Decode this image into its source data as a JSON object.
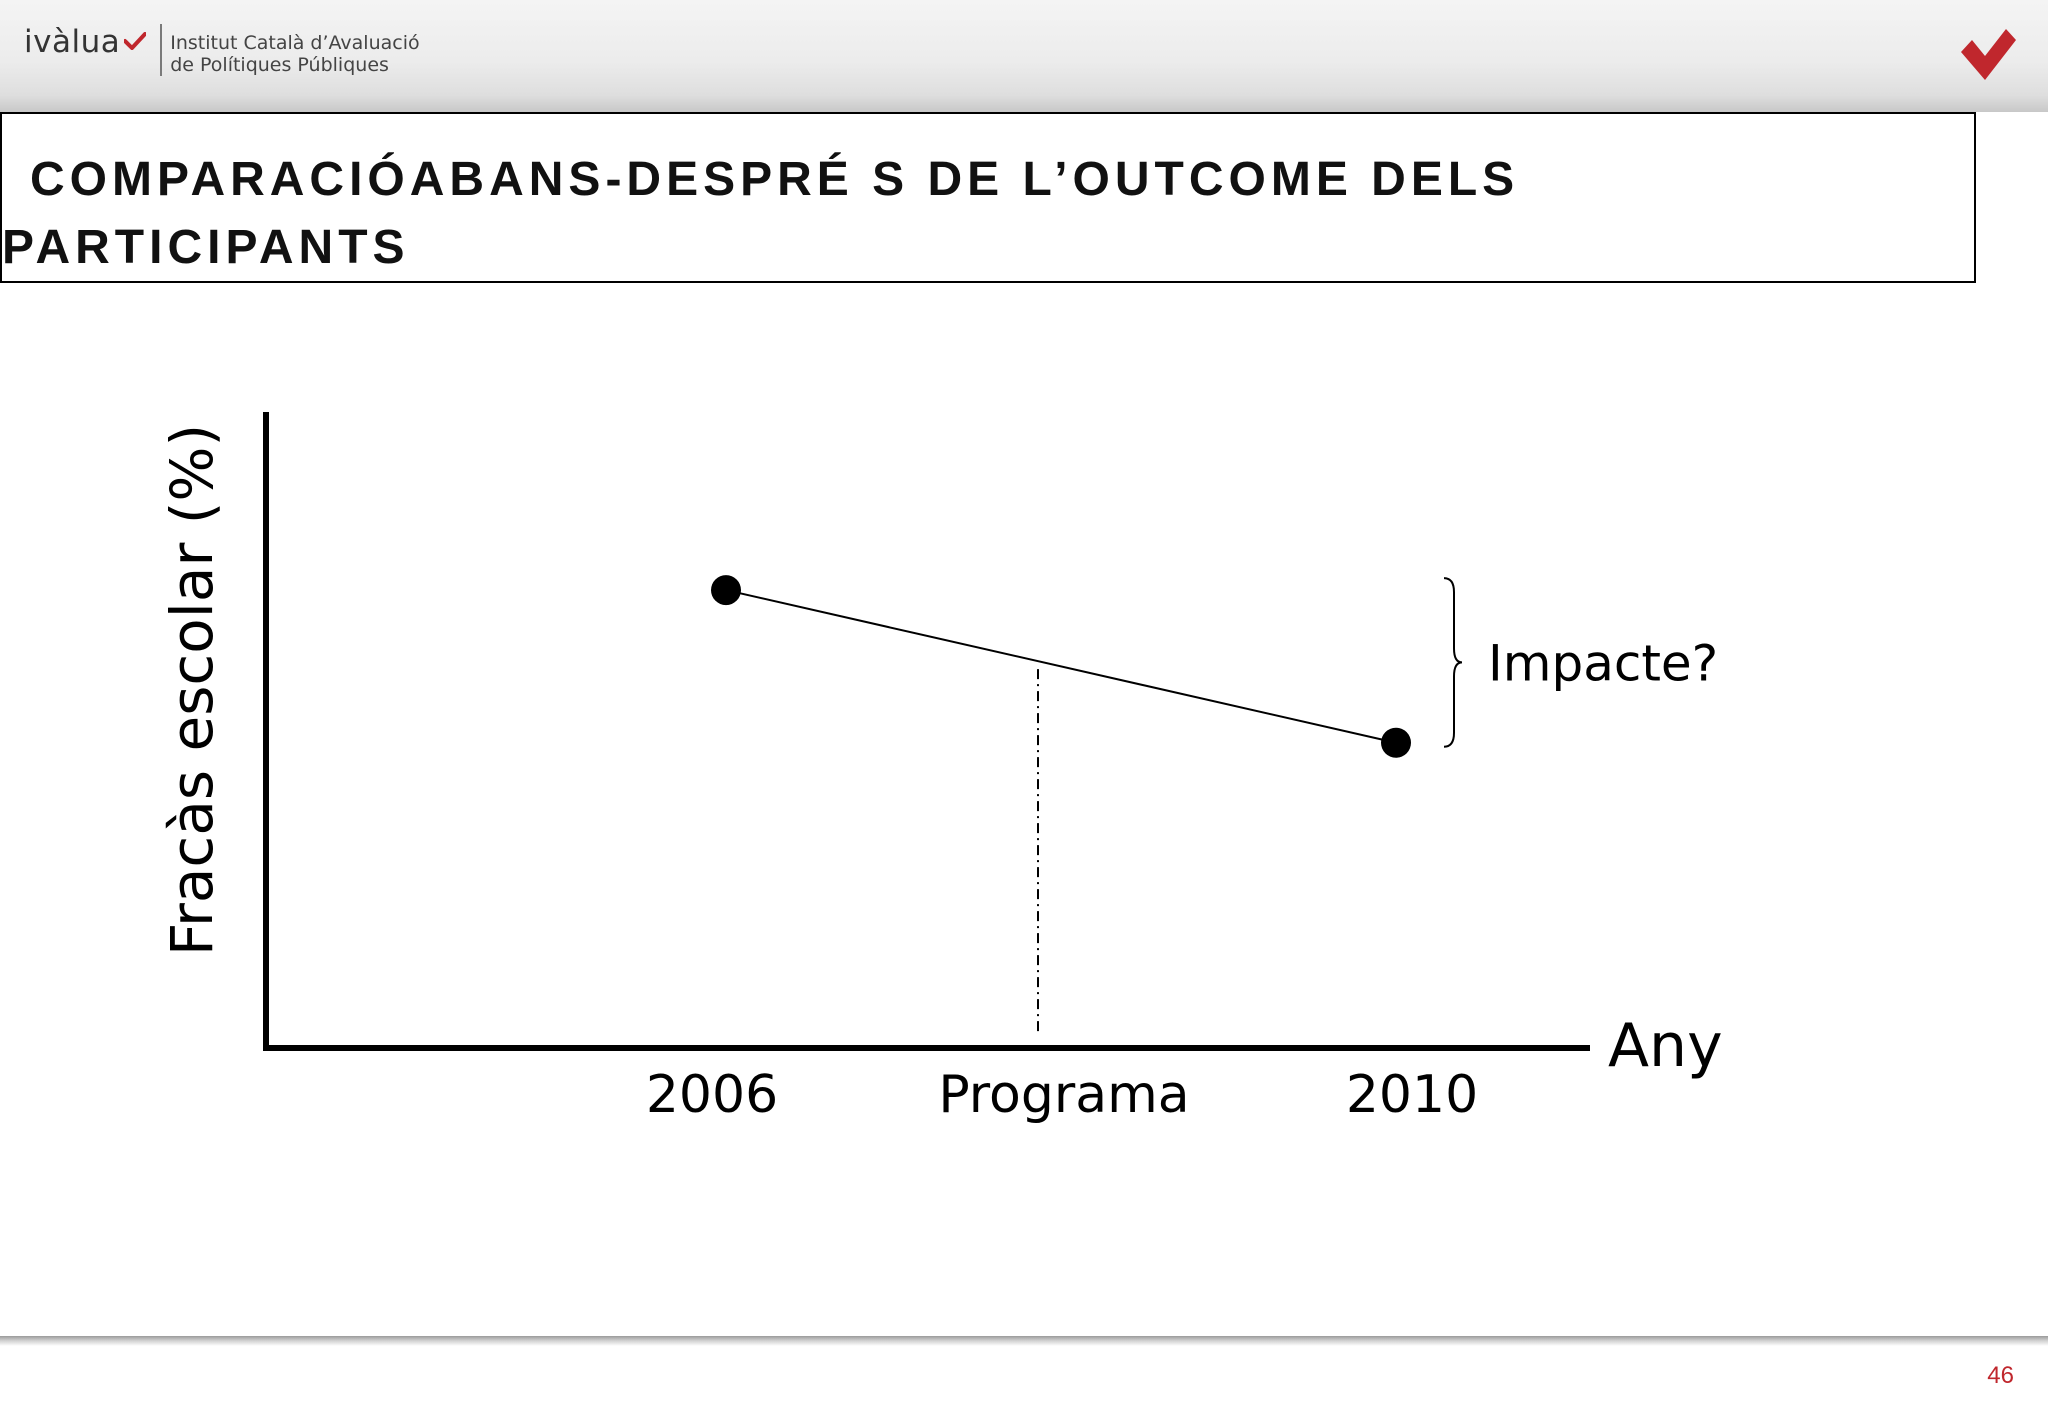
{
  "header": {
    "logo_word": "ivàlua",
    "institute_line1": "Institut Català d’Avaluació",
    "institute_line2": "de Polítiques Públiques"
  },
  "title": {
    "line1": "COMPARACIÓABANS-DESPRÉ S DE L’OUTCOME DELS",
    "line2": "PARTICIPANTS"
  },
  "chart_data": {
    "type": "line",
    "x": [
      "2006",
      "2010"
    ],
    "x_tick_labels": [
      "2006",
      "Programa",
      "2010"
    ],
    "series": [
      {
        "values": [
          72,
          48
        ]
      }
    ],
    "xlabel": "Any",
    "ylabel": "Fracàs escolar (%)",
    "ylim": [
      0,
      100
    ],
    "markers": "filled-circle",
    "grid": false,
    "legend": "none",
    "annotations": [
      {
        "type": "vertical-dash-dot-line",
        "at": "Programa"
      },
      {
        "type": "brace",
        "text": "Impacte?"
      }
    ],
    "line_color": "#000000"
  },
  "footer": {
    "page_number": "46"
  },
  "colors": {
    "brand_red": "#c0272d",
    "text": "#000000"
  },
  "icons": {
    "logo_check": "checkmark-icon",
    "corner_mark": "checkmark-icon"
  }
}
